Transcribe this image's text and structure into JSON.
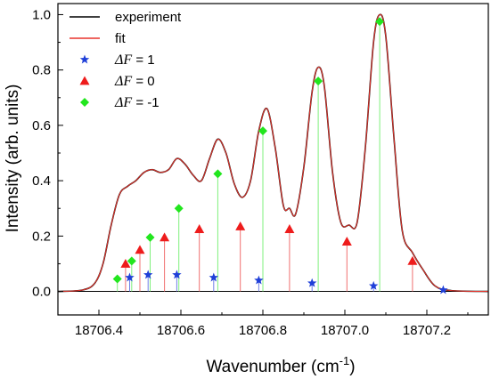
{
  "chart_data": {
    "type": "line",
    "xlabel": "Wavenumber (cm",
    "xlabel_sup": "-1",
    "xlabel_close": ")",
    "ylabel": "Intensity (arb. units)",
    "xlim": [
      18706.3,
      18707.35
    ],
    "ylim": [
      -0.085,
      1.04
    ],
    "x_ticks": [
      18706.4,
      18706.6,
      18706.8,
      18707.0,
      18707.2
    ],
    "x_tick_labels": [
      "18706.4",
      "18706.6",
      "18706.8",
      "18707.0",
      "18707.2"
    ],
    "y_ticks": [
      0.0,
      0.2,
      0.4,
      0.6,
      0.8,
      1.0
    ],
    "y_tick_labels": [
      "0.0",
      "0.2",
      "0.4",
      "0.6",
      "0.8",
      "1.0"
    ],
    "grid": false,
    "legend_position": "top-left",
    "curves": [
      {
        "name": "experiment",
        "color": "#000000",
        "points": [
          [
            18706.3,
            0.0
          ],
          [
            18706.36,
            0.005
          ],
          [
            18706.39,
            0.03
          ],
          [
            18706.41,
            0.1
          ],
          [
            18706.43,
            0.24
          ],
          [
            18706.45,
            0.35
          ],
          [
            18706.47,
            0.38
          ],
          [
            18706.49,
            0.4
          ],
          [
            18706.51,
            0.43
          ],
          [
            18706.53,
            0.44
          ],
          [
            18706.55,
            0.43
          ],
          [
            18706.57,
            0.44
          ],
          [
            18706.59,
            0.48
          ],
          [
            18706.61,
            0.46
          ],
          [
            18706.63,
            0.42
          ],
          [
            18706.65,
            0.4
          ],
          [
            18706.67,
            0.48
          ],
          [
            18706.69,
            0.55
          ],
          [
            18706.71,
            0.5
          ],
          [
            18706.73,
            0.39
          ],
          [
            18706.75,
            0.34
          ],
          [
            18706.77,
            0.4
          ],
          [
            18706.79,
            0.58
          ],
          [
            18706.81,
            0.66
          ],
          [
            18706.83,
            0.52
          ],
          [
            18706.85,
            0.31
          ],
          [
            18706.865,
            0.3
          ],
          [
            18706.88,
            0.28
          ],
          [
            18706.9,
            0.45
          ],
          [
            18706.92,
            0.72
          ],
          [
            18706.935,
            0.81
          ],
          [
            18706.95,
            0.74
          ],
          [
            18706.97,
            0.43
          ],
          [
            18706.99,
            0.25
          ],
          [
            18707.01,
            0.24
          ],
          [
            18707.03,
            0.25
          ],
          [
            18707.05,
            0.52
          ],
          [
            18707.07,
            0.9
          ],
          [
            18707.085,
            1.0
          ],
          [
            18707.1,
            0.92
          ],
          [
            18707.12,
            0.55
          ],
          [
            18707.14,
            0.22
          ],
          [
            18707.165,
            0.14
          ],
          [
            18707.19,
            0.08
          ],
          [
            18707.22,
            0.02
          ],
          [
            18707.26,
            0.003
          ],
          [
            18707.35,
            0.0
          ]
        ]
      },
      {
        "name": "fit",
        "color": "#e8342c",
        "points": [
          [
            18706.3,
            0.0
          ],
          [
            18706.36,
            0.005
          ],
          [
            18706.39,
            0.03
          ],
          [
            18706.41,
            0.1
          ],
          [
            18706.43,
            0.24
          ],
          [
            18706.45,
            0.35
          ],
          [
            18706.47,
            0.38
          ],
          [
            18706.49,
            0.4
          ],
          [
            18706.51,
            0.43
          ],
          [
            18706.53,
            0.44
          ],
          [
            18706.55,
            0.43
          ],
          [
            18706.57,
            0.44
          ],
          [
            18706.59,
            0.48
          ],
          [
            18706.61,
            0.46
          ],
          [
            18706.63,
            0.42
          ],
          [
            18706.65,
            0.4
          ],
          [
            18706.67,
            0.48
          ],
          [
            18706.69,
            0.55
          ],
          [
            18706.71,
            0.5
          ],
          [
            18706.73,
            0.39
          ],
          [
            18706.75,
            0.34
          ],
          [
            18706.77,
            0.4
          ],
          [
            18706.79,
            0.58
          ],
          [
            18706.81,
            0.66
          ],
          [
            18706.83,
            0.52
          ],
          [
            18706.85,
            0.31
          ],
          [
            18706.865,
            0.3
          ],
          [
            18706.88,
            0.28
          ],
          [
            18706.9,
            0.45
          ],
          [
            18706.92,
            0.72
          ],
          [
            18706.935,
            0.81
          ],
          [
            18706.95,
            0.74
          ],
          [
            18706.97,
            0.43
          ],
          [
            18706.99,
            0.25
          ],
          [
            18707.01,
            0.24
          ],
          [
            18707.03,
            0.25
          ],
          [
            18707.05,
            0.52
          ],
          [
            18707.07,
            0.9
          ],
          [
            18707.085,
            1.0
          ],
          [
            18707.1,
            0.92
          ],
          [
            18707.12,
            0.55
          ],
          [
            18707.14,
            0.22
          ],
          [
            18707.165,
            0.14
          ],
          [
            18707.19,
            0.08
          ],
          [
            18707.22,
            0.02
          ],
          [
            18707.26,
            0.003
          ],
          [
            18707.35,
            0.0
          ]
        ]
      }
    ],
    "stick_series": [
      {
        "name": "ΔF = 1",
        "marker": "star",
        "marker_color": "#1f3fd8",
        "line_color": "#6f7fe8",
        "points": [
          [
            18706.475,
            0.05
          ],
          [
            18706.52,
            0.06
          ],
          [
            18706.59,
            0.06
          ],
          [
            18706.68,
            0.05
          ],
          [
            18706.79,
            0.04
          ],
          [
            18706.92,
            0.03
          ],
          [
            18707.07,
            0.02
          ],
          [
            18707.24,
            0.005
          ]
        ]
      },
      {
        "name": "ΔF = 0",
        "marker": "triangle",
        "marker_color": "#ee1c1c",
        "line_color": "#f07070",
        "points": [
          [
            18706.465,
            0.1
          ],
          [
            18706.5,
            0.15
          ],
          [
            18706.56,
            0.195
          ],
          [
            18706.645,
            0.225
          ],
          [
            18706.745,
            0.235
          ],
          [
            18706.865,
            0.225
          ],
          [
            18707.005,
            0.18
          ],
          [
            18707.165,
            0.11
          ]
        ]
      },
      {
        "name": "ΔF = -1",
        "marker": "diamond",
        "marker_color": "#22e61e",
        "line_color": "#7ff07c",
        "points": [
          [
            18706.445,
            0.045
          ],
          [
            18706.48,
            0.11
          ],
          [
            18706.525,
            0.195
          ],
          [
            18706.595,
            0.3
          ],
          [
            18706.69,
            0.425
          ],
          [
            18706.8,
            0.58
          ],
          [
            18706.935,
            0.76
          ],
          [
            18707.085,
            0.975
          ]
        ]
      }
    ],
    "legend": [
      {
        "label": "experiment",
        "kind": "line",
        "color": "#000000"
      },
      {
        "label": "fit",
        "kind": "line",
        "color": "#e8342c"
      },
      {
        "label_prefix": "ΔF",
        "label_suffix": " = 1",
        "kind": "star",
        "color": "#1f3fd8"
      },
      {
        "label_prefix": "ΔF",
        "label_suffix": " = 0",
        "kind": "triangle",
        "color": "#ee1c1c"
      },
      {
        "label_prefix": "ΔF",
        "label_suffix": " = -1",
        "kind": "diamond",
        "color": "#22e61e"
      }
    ]
  }
}
